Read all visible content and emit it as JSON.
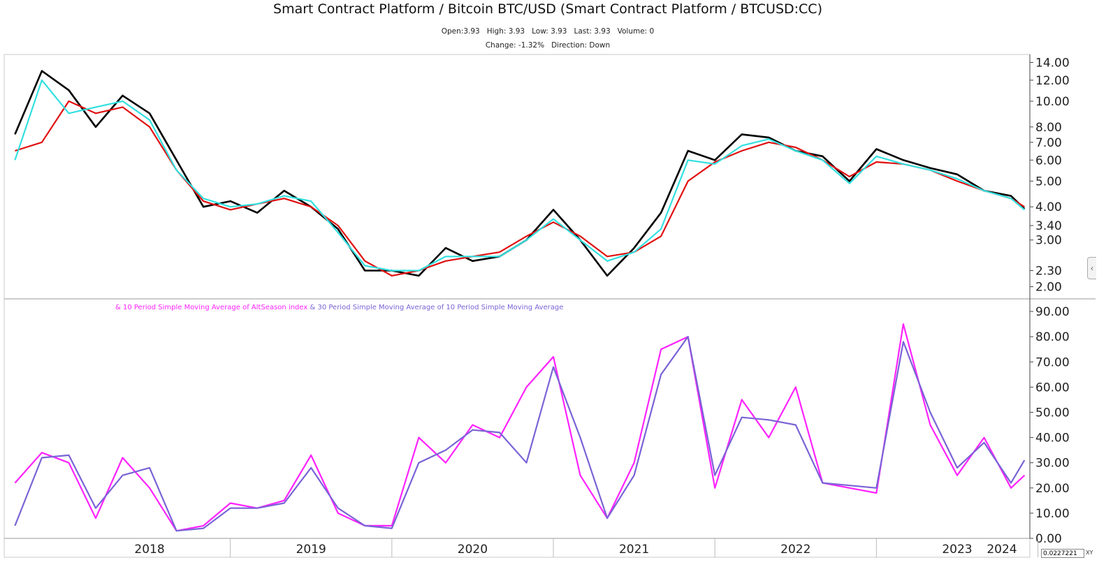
{
  "title": "Smart Contract Platform / Bitcoin BTC/USD (Smart Contract Platform / BTCUSD:CC)",
  "info_line_1": "Open:3.93   High: 3.93   Low: 3.93   Last: 3.93   Volume: 0",
  "info_line_2": "Change: -1.32%   Direction: Down",
  "legend": {
    "part1": "& 10 Period Simple Moving Average of AltSeason index",
    "part2": " & 30 Period Simple Moving Average of 10 Period Simple Moving Average"
  },
  "scale_value": "0.0227221",
  "xy_label": "XY",
  "colors": {
    "price": "#000000",
    "fast_ma": "#33e0e0",
    "slow_ma": "#e01010",
    "altseason_ma10": "#ff22ff",
    "altseason_ma30": "#7a63d6"
  },
  "chart_data": [
    {
      "type": "line",
      "scale": "log",
      "x_axis": "dates",
      "ylim": [
        1.8,
        15.0
      ],
      "yticks": [
        "14.00",
        "12.00",
        "10.00",
        "8.00",
        "7.00",
        "6.00",
        "5.00",
        "4.00",
        "3.40",
        "3.00",
        "2.30",
        "2.00"
      ],
      "ytick_values": [
        14,
        12,
        10,
        8,
        7,
        6,
        5,
        4,
        3.4,
        3,
        2.3,
        2
      ],
      "x": [
        "2017-09",
        "2017-11",
        "2018-01",
        "2018-03",
        "2018-05",
        "2018-07",
        "2018-09",
        "2018-11",
        "2019-01",
        "2019-03",
        "2019-05",
        "2019-07",
        "2019-09",
        "2019-11",
        "2020-01",
        "2020-03",
        "2020-05",
        "2020-07",
        "2020-09",
        "2020-11",
        "2021-01",
        "2021-03",
        "2021-05",
        "2021-07",
        "2021-09",
        "2021-11",
        "2022-01",
        "2022-03",
        "2022-05",
        "2022-07",
        "2022-09",
        "2022-11",
        "2023-01",
        "2023-03",
        "2023-05",
        "2023-07",
        "2023-09",
        "2023-11",
        "2023-12"
      ],
      "series": [
        {
          "values": [
            7.5,
            13.0,
            11.0,
            8.0,
            10.5,
            9.0,
            6.0,
            4.0,
            4.2,
            3.8,
            4.6,
            4.0,
            3.3,
            2.3,
            2.3,
            2.2,
            2.8,
            2.5,
            2.6,
            3.0,
            3.9,
            3.0,
            2.2,
            2.8,
            3.8,
            6.5,
            6.0,
            7.5,
            7.3,
            6.5,
            6.2,
            5.0,
            6.6,
            6.0,
            5.6,
            5.3,
            4.6,
            4.4,
            3.93
          ]
        },
        {
          "values": [
            6.0,
            12.0,
            9.0,
            9.5,
            10.0,
            8.5,
            5.5,
            4.3,
            4.0,
            4.1,
            4.4,
            4.2,
            3.2,
            2.4,
            2.3,
            2.3,
            2.6,
            2.6,
            2.6,
            3.0,
            3.6,
            3.0,
            2.5,
            2.7,
            3.3,
            6.0,
            5.8,
            6.8,
            7.2,
            6.5,
            6.0,
            4.9,
            6.2,
            5.8,
            5.5,
            5.1,
            4.6,
            4.3,
            3.9
          ]
        },
        {
          "values": [
            6.5,
            7.0,
            10.0,
            9.0,
            9.5,
            8.0,
            5.5,
            4.2,
            3.9,
            4.1,
            4.3,
            4.0,
            3.4,
            2.5,
            2.2,
            2.3,
            2.5,
            2.6,
            2.7,
            3.1,
            3.5,
            3.1,
            2.6,
            2.7,
            3.1,
            5.0,
            5.9,
            6.5,
            7.0,
            6.7,
            6.0,
            5.2,
            5.9,
            5.8,
            5.5,
            5.0,
            4.6,
            4.3,
            4.0
          ]
        }
      ]
    },
    {
      "type": "line",
      "ylim": [
        0,
        95
      ],
      "yticks": [
        "0.00",
        "10.00",
        "20.00",
        "30.00",
        "40.00",
        "50.00",
        "60.00",
        "70.00",
        "80.00",
        "90.00"
      ],
      "ytick_values": [
        0,
        10,
        20,
        30,
        40,
        50,
        60,
        70,
        80,
        90
      ],
      "x": [
        "2017-09",
        "2017-11",
        "2018-01",
        "2018-03",
        "2018-05",
        "2018-07",
        "2018-09",
        "2018-11",
        "2019-01",
        "2019-03",
        "2019-05",
        "2019-07",
        "2019-09",
        "2019-11",
        "2020-01",
        "2020-03",
        "2020-05",
        "2020-07",
        "2020-09",
        "2020-11",
        "2021-01",
        "2021-03",
        "2021-05",
        "2021-07",
        "2021-09",
        "2021-11",
        "2022-01",
        "2022-03",
        "2022-05",
        "2022-07",
        "2022-09",
        "2022-11",
        "2023-01",
        "2023-03",
        "2023-05",
        "2023-07",
        "2023-09",
        "2023-11",
        "2023-12"
      ],
      "series": [
        {
          "name": "10 Period Simple Moving Average of AltSeason index",
          "values": [
            22,
            34,
            30,
            8,
            32,
            20,
            3,
            5,
            14,
            12,
            15,
            33,
            10,
            5,
            5,
            40,
            30,
            45,
            40,
            60,
            72,
            25,
            8,
            30,
            75,
            80,
            20,
            55,
            40,
            60,
            22,
            20,
            18,
            85,
            45,
            25,
            40,
            20,
            25
          ]
        },
        {
          "name": "30 Period Simple Moving Average of 10 Period Simple Moving Average",
          "values": [
            5,
            32,
            33,
            12,
            25,
            28,
            3,
            4,
            12,
            12,
            14,
            28,
            12,
            5,
            4,
            30,
            35,
            43,
            42,
            30,
            68,
            40,
            8,
            25,
            65,
            80,
            25,
            48,
            47,
            45,
            22,
            21,
            20,
            78,
            50,
            28,
            38,
            22,
            31
          ]
        }
      ]
    }
  ],
  "x_axis": {
    "years": [
      "2018",
      "2019",
      "2020",
      "2021",
      "2022",
      "2023",
      "2024"
    ]
  }
}
